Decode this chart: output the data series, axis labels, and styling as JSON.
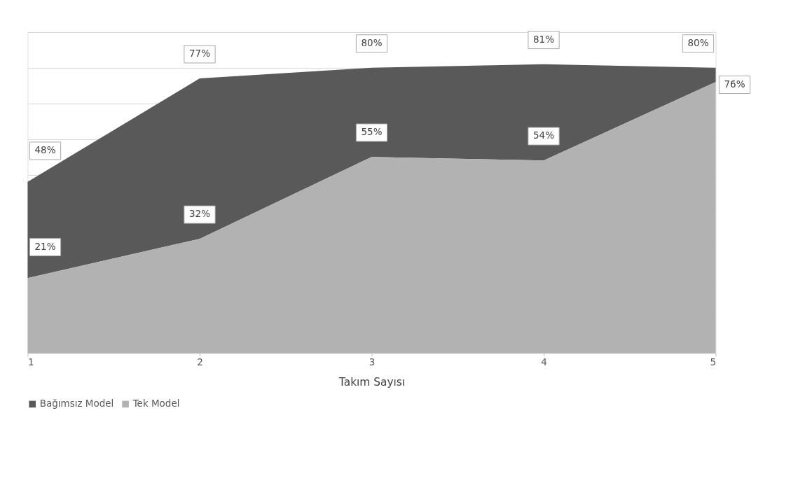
{
  "chart_data": {
    "type": "area",
    "xlabel": "Takım Sayısı",
    "x": [
      1,
      2,
      3,
      4,
      5
    ],
    "series": [
      {
        "name": "Bağımsız Model",
        "color": "#595959",
        "values": [
          48,
          77,
          80,
          81,
          80
        ],
        "value_labels": [
          "48%",
          "77%",
          "80%",
          "81%",
          "80%"
        ]
      },
      {
        "name": "Tek Model",
        "color": "#b2b2b2",
        "values": [
          21,
          32,
          55,
          54,
          76
        ],
        "value_labels": [
          "21%",
          "32%",
          "55%",
          "54%",
          "76%"
        ]
      }
    ],
    "xlim": [
      1,
      5
    ],
    "xticks": [
      1,
      2,
      3,
      4,
      5
    ],
    "grid": "y",
    "legend": "bottom",
    "tick_labels": "x"
  }
}
